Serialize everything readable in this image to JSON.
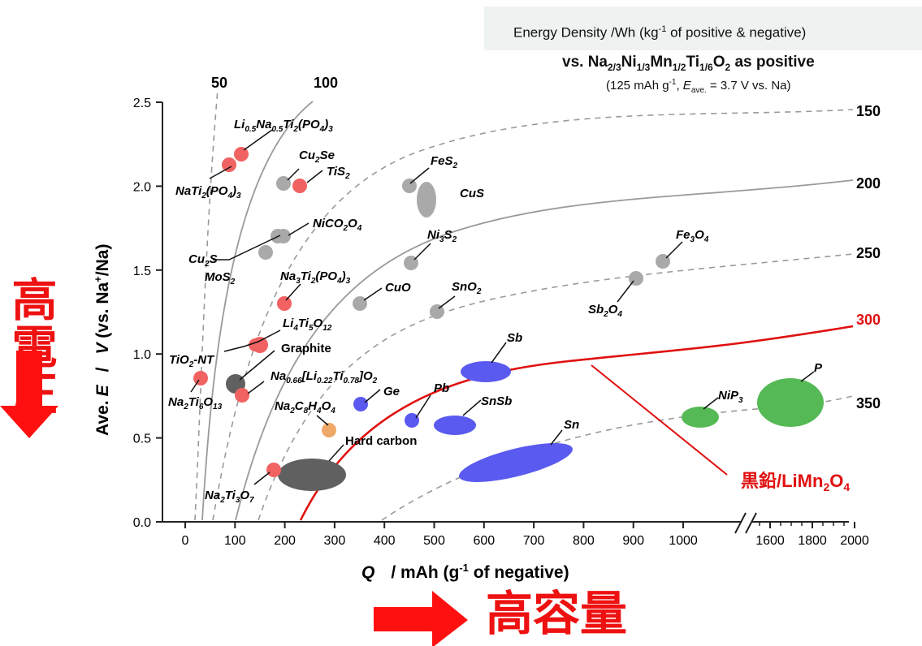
{
  "header": {
    "energy_density_prefix": "Energy Density /Wh (kg",
    "energy_density_sup": "-1",
    "energy_density_suffix": " of positive & negative)",
    "positive_ref": {
      "p1": "vs. Na",
      "s1": "2/3",
      "p2": "Ni",
      "s2": "1/3",
      "p3": "Mn",
      "s3": "1/2",
      "p4": "Ti",
      "s4": "1/6",
      "p5": "O",
      "s5": "2",
      "p6": " as positive"
    },
    "conditions": {
      "p1": "(125 mAh g",
      "sup": "-1",
      "p2": ", ",
      "eitalic": "E",
      "esub": "ave.",
      "p3": " = 3.7 V vs. Na)"
    }
  },
  "side_caption": "高電圧",
  "bottom_caption": "高容量",
  "colors": {
    "red_marker": "#f16262",
    "gray_marker": "#a9a9a9",
    "dark_marker": "#606060",
    "blue_marker": "#5a5af0",
    "green_marker": "#55b955",
    "orange_marker": "#f0a868",
    "energy_300_curve": "#e01010",
    "arrow_red": "#ff1010"
  },
  "chart_data": {
    "type": "scatter",
    "xlabel": {
      "italic": "Q",
      "rest": "/   mAh (g",
      "sup": "-1",
      "tail": " of negative)"
    },
    "ylabel": {
      "pre": "Ave.",
      "e": "E",
      "slash": "/",
      "v": "V",
      "tail1": " (vs. Na",
      "sup": "+",
      "tail2": "/Na)"
    },
    "x_ticks": [
      "0",
      "100",
      "200",
      "300",
      "400",
      "500",
      "600",
      "700",
      "800",
      "900",
      "1000",
      "1600",
      "1800",
      "2000"
    ],
    "y_ticks": [
      "0.0",
      "0.5",
      "1.0",
      "1.5",
      "2.0",
      "2.5"
    ],
    "ylim": [
      0,
      2.5
    ],
    "x_axis_break": true,
    "energy_density_curves": [
      {
        "label": "50",
        "style": "dashed",
        "color": "#9a9a9a"
      },
      {
        "label": "100",
        "style": "solid",
        "color": "#9a9a9a"
      },
      {
        "label": "150",
        "style": "dashed",
        "color": "#9a9a9a"
      },
      {
        "label": "200",
        "style": "solid",
        "color": "#9a9a9a"
      },
      {
        "label": "250",
        "style": "dashed",
        "color": "#9a9a9a"
      },
      {
        "label": "300",
        "style": "solid",
        "color": "#e01010"
      },
      {
        "label": "350",
        "style": "dashed",
        "color": "#9a9a9a"
      }
    ],
    "points": [
      {
        "id": "nati2po43",
        "x": 130,
        "y": 2.13,
        "color": "red"
      },
      {
        "id": "lina_tipo4",
        "x": 160,
        "y": 2.19,
        "color": "red"
      },
      {
        "id": "cu2se",
        "x": 205,
        "y": 2.02,
        "color": "gray"
      },
      {
        "id": "tis2",
        "x": 240,
        "y": 2.0,
        "color": "red"
      },
      {
        "id": "fes2",
        "x": 440,
        "y": 2.0,
        "color": "gray"
      },
      {
        "id": "nico2o4",
        "x": 215,
        "y": 1.7,
        "color": "gray"
      },
      {
        "id": "cu2s",
        "x": 200,
        "y": 1.7,
        "color": "gray"
      },
      {
        "id": "mos2",
        "x": 180,
        "y": 1.6,
        "color": "gray"
      },
      {
        "id": "ni3s2",
        "x": 440,
        "y": 1.54,
        "color": "gray"
      },
      {
        "id": "fe3o4",
        "x": 940,
        "y": 1.55,
        "color": "gray"
      },
      {
        "id": "sb2o4",
        "x": 890,
        "y": 1.45,
        "color": "gray"
      },
      {
        "id": "na3ti2po43",
        "x": 200,
        "y": 1.3,
        "color": "red"
      },
      {
        "id": "cuo",
        "x": 340,
        "y": 1.3,
        "color": "gray"
      },
      {
        "id": "sno2",
        "x": 490,
        "y": 1.25,
        "color": "gray"
      },
      {
        "id": "li4ti5o12",
        "x": 155,
        "y": 1.05,
        "color": "red"
      },
      {
        "id": "tio2_nt",
        "x": 30,
        "y": 0.86,
        "color": "red"
      },
      {
        "id": "graphite",
        "x": 95,
        "y": 0.82,
        "color": "dark"
      },
      {
        "id": "na066_li_ti_o2",
        "x": 120,
        "y": 0.75,
        "color": "red"
      },
      {
        "id": "ge",
        "x": 350,
        "y": 0.7,
        "color": "blue"
      },
      {
        "id": "pb",
        "x": 450,
        "y": 0.61,
        "color": "blue"
      },
      {
        "id": "na2c8h4o4",
        "x": 290,
        "y": 0.55,
        "color": "orange"
      },
      {
        "id": "na2ti3o7",
        "x": 170,
        "y": 0.31,
        "color": "red"
      }
    ],
    "regions": [
      {
        "id": "cus",
        "x": 480,
        "y": 1.9,
        "color": "gray"
      },
      {
        "id": "sb",
        "x": 600,
        "y": 0.88,
        "color": "blue"
      },
      {
        "id": "snsb",
        "x": 520,
        "y": 0.58,
        "color": "blue"
      },
      {
        "id": "sn",
        "x": 660,
        "y": 0.34,
        "color": "blue"
      },
      {
        "id": "hard_carbon",
        "x": 250,
        "y": 0.28,
        "color": "dark"
      },
      {
        "id": "nip3",
        "x": 1000,
        "y": 0.62,
        "color": "green"
      },
      {
        "id": "p",
        "x": 1700,
        "y": 0.7,
        "color": "green"
      }
    ]
  },
  "labels": {
    "li05na05": {
      "a": "Li",
      "b": "0.5",
      "c": "Na",
      "d": "0.5",
      "e": "Ti",
      "f": "2",
      "g": "(PO",
      "h": "4",
      "i": ")",
      "j": "3"
    },
    "nati2po43": {
      "a": "NaTi",
      "b": "2",
      "c": "(PO",
      "d": "4",
      "e": ")",
      "f": "3"
    },
    "cu2se": {
      "a": "Cu",
      "b": "2",
      "c": "Se"
    },
    "tis2": {
      "a": "TiS",
      "b": "2"
    },
    "fes2": {
      "a": "FeS",
      "b": "2"
    },
    "cus": "CuS",
    "nico2o4": {
      "a": "NiCO",
      "b": "2",
      "c": "O",
      "d": "4"
    },
    "cu2s": {
      "a": "Cu",
      "b": "2",
      "c": "S"
    },
    "mos2": {
      "a": "MoS",
      "b": "2"
    },
    "ni3s2": {
      "a": "Ni",
      "b": "3",
      "c": "S",
      "d": "2"
    },
    "fe3o4": {
      "a": "Fe",
      "b": "3",
      "c": "O",
      "d": "4"
    },
    "sb2o4": {
      "a": "Sb",
      "b": "2",
      "c": "O",
      "d": "4"
    },
    "na3ti2po43": {
      "a": "Na",
      "b": "3",
      "c": "Ti",
      "d": "2",
      "e": "(PO",
      "f": "4",
      "g": ")",
      "h": "3"
    },
    "cuo": "CuO",
    "sno2": {
      "a": "SnO",
      "b": "2"
    },
    "li4ti5o12": {
      "a": "Li",
      "b": "4",
      "c": "Ti",
      "d": "5",
      "e": "O",
      "f": "12"
    },
    "graphite": "Graphite",
    "tio2nt": {
      "a": "TiO",
      "b": "2",
      "c": "-NT"
    },
    "na066": {
      "a": "Na",
      "b": "0.66",
      "c": "[Li",
      "d": "0.22",
      "e": "Ti",
      "f": "0.78",
      "g": "]O",
      "h": "2"
    },
    "na2ti6o13": {
      "a": "Na",
      "b": "2",
      "c": "Ti",
      "d": "6",
      "e": "O",
      "f": "13"
    },
    "ge": "Ge",
    "pb": "Pb",
    "sb": "Sb",
    "snsb": "SnSb",
    "sn": "Sn",
    "na2c8h4o4": {
      "a": "Na",
      "b": "2",
      "c": "C",
      "d": "8",
      "e": "H",
      "f": "4",
      "g": "O",
      "h": "4"
    },
    "hard_carbon": "Hard carbon",
    "na2ti3o7": {
      "a": "Na",
      "b": "2",
      "c": "Ti",
      "d": "3",
      "e": "O",
      "f": "7"
    },
    "nip3": {
      "a": "NiP",
      "b": "3"
    },
    "p": "P",
    "graphite_limn2o4": {
      "a": "黒鉛/LiMn",
      "b": "2",
      "c": "O",
      "d": "4"
    }
  }
}
